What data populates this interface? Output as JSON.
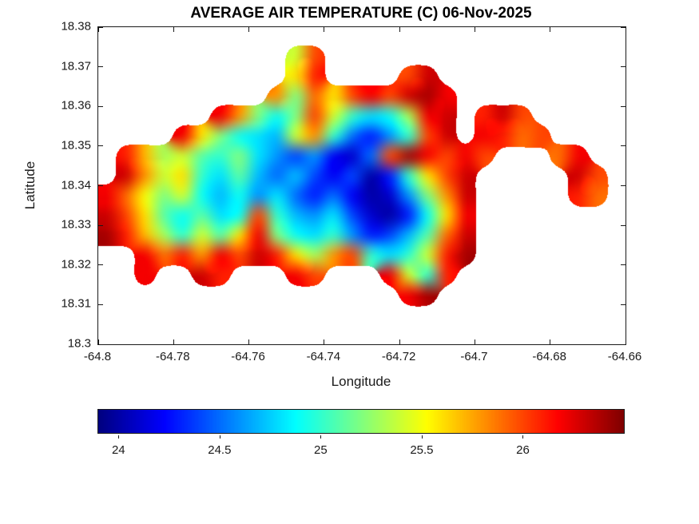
{
  "background": "#ffffff",
  "chart_data": {
    "type": "heatmap",
    "title": "AVERAGE AIR TEMPERATURE (C) 06-Nov-2025",
    "xlabel": "Longitude",
    "ylabel": "Latitude",
    "xlim": [
      -64.8,
      -64.66
    ],
    "ylim": [
      18.3,
      18.38
    ],
    "xticks": [
      -64.8,
      -64.78,
      -64.76,
      -64.74,
      -64.72,
      -64.7,
      -64.68,
      -64.66
    ],
    "xtick_labels": [
      "-64.8",
      "-64.78",
      "-64.76",
      "-64.74",
      "-64.72",
      "-64.7",
      "-64.68",
      "-64.66"
    ],
    "yticks": [
      18.38,
      18.37,
      18.36,
      18.35,
      18.34,
      18.33,
      18.32,
      18.31,
      18.3
    ],
    "ytick_labels": [
      "18.38",
      "18.37",
      "18.36",
      "18.35",
      "18.34",
      "18.33",
      "18.32",
      "18.31",
      "18.3"
    ],
    "colormap": "jet",
    "clim": [
      23.9,
      26.5
    ],
    "colorbar_orientation": "horizontal",
    "colorbar_ticks": [
      24,
      24.5,
      25,
      25.5,
      26
    ],
    "colorbar_tick_labels": [
      "24",
      "24.5",
      "25",
      "25.5",
      "26"
    ],
    "grid": {
      "lon_range": [
        -64.8,
        -64.66
      ],
      "lat_range": [
        18.3,
        18.38
      ],
      "ncols": 28,
      "nrows": 16,
      "values": [
        [
          null,
          null,
          null,
          null,
          null,
          null,
          null,
          null,
          null,
          null,
          null,
          null,
          null,
          null,
          null,
          null,
          null,
          null,
          null,
          null,
          null,
          null,
          null,
          null,
          null,
          null,
          null,
          null
        ],
        [
          null,
          null,
          null,
          null,
          null,
          null,
          null,
          null,
          null,
          null,
          25.4,
          26,
          null,
          null,
          null,
          null,
          null,
          null,
          null,
          null,
          null,
          null,
          null,
          null,
          null,
          null,
          null,
          null
        ],
        [
          null,
          null,
          null,
          null,
          null,
          null,
          null,
          null,
          null,
          null,
          25.6,
          26.1,
          null,
          null,
          null,
          null,
          26,
          26.3,
          null,
          null,
          null,
          null,
          null,
          null,
          null,
          null,
          null,
          null
        ],
        [
          null,
          null,
          null,
          null,
          null,
          null,
          null,
          null,
          null,
          25.8,
          25.2,
          25.9,
          25.6,
          26,
          26.2,
          26,
          26.3,
          26.4,
          26.2,
          null,
          null,
          null,
          null,
          null,
          null,
          null,
          null,
          null
        ],
        [
          null,
          null,
          null,
          null,
          null,
          null,
          26.2,
          25.8,
          25.2,
          24.9,
          25.2,
          26,
          25.4,
          25,
          24.8,
          24.9,
          25.3,
          26.2,
          26.3,
          null,
          26.1,
          26.3,
          26,
          null,
          null,
          null,
          null,
          null
        ],
        [
          null,
          null,
          null,
          null,
          26.2,
          25.6,
          25.2,
          24.9,
          24.8,
          24.7,
          25.4,
          25.8,
          25,
          24.5,
          24.3,
          24.6,
          25,
          26,
          26.3,
          null,
          26.2,
          26.1,
          25.9,
          26,
          null,
          null,
          null,
          null
        ],
        [
          null,
          26.1,
          25.7,
          25.3,
          25.4,
          25.1,
          25,
          25.2,
          24.8,
          24.6,
          24.4,
          24.6,
          24.2,
          24.1,
          24.5,
          26,
          26.4,
          26.2,
          26,
          26.2,
          26,
          null,
          null,
          null,
          25.9,
          26.2,
          null,
          null
        ],
        [
          null,
          26.3,
          25.8,
          25.4,
          25.6,
          25,
          24.8,
          25.1,
          24.7,
          24.5,
          24.7,
          24.4,
          24.2,
          24.4,
          24,
          24.3,
          25,
          25.6,
          26,
          26.3,
          null,
          null,
          null,
          null,
          null,
          26.3,
          26,
          null
        ],
        [
          26.2,
          25.9,
          25.5,
          25.2,
          25.4,
          24.9,
          24.7,
          24.9,
          24.6,
          24.8,
          24.5,
          24.3,
          24.5,
          24.2,
          24,
          24.1,
          24.6,
          25.2,
          25.8,
          26.3,
          null,
          null,
          null,
          null,
          null,
          26.1,
          25.9,
          null
        ],
        [
          26.3,
          26,
          25.6,
          25.1,
          24.9,
          25.1,
          24.8,
          24.9,
          26,
          25,
          24.7,
          24.6,
          24.8,
          24.4,
          24.1,
          24,
          24.3,
          24.9,
          25.6,
          26.2,
          null,
          null,
          null,
          null,
          null,
          null,
          null,
          null
        ],
        [
          26.4,
          26.1,
          25.7,
          25.3,
          25,
          25.4,
          25.1,
          25.6,
          26.2,
          25.2,
          24.9,
          24.8,
          25,
          24.6,
          24.3,
          24.4,
          24.7,
          25.1,
          25.9,
          26.3,
          null,
          null,
          null,
          null,
          null,
          null,
          null,
          null
        ],
        [
          null,
          null,
          26.2,
          25.9,
          26.1,
          25.8,
          26.2,
          26,
          26.3,
          26.1,
          25.6,
          25.3,
          25.8,
          26,
          25,
          24.8,
          25,
          25.4,
          26.1,
          26.4,
          null,
          null,
          null,
          null,
          null,
          null,
          null,
          null
        ],
        [
          null,
          null,
          26.2,
          null,
          null,
          26.3,
          26.1,
          null,
          null,
          null,
          26.2,
          26,
          null,
          null,
          null,
          26.2,
          25.4,
          25,
          26.1,
          null,
          null,
          null,
          null,
          null,
          null,
          null,
          null,
          null
        ],
        [
          null,
          null,
          null,
          null,
          null,
          null,
          null,
          null,
          null,
          null,
          null,
          null,
          null,
          null,
          null,
          null,
          26.2,
          26.4,
          null,
          null,
          null,
          null,
          null,
          null,
          null,
          null,
          null,
          null
        ],
        [
          null,
          null,
          null,
          null,
          null,
          null,
          null,
          null,
          null,
          null,
          null,
          null,
          null,
          null,
          null,
          null,
          null,
          null,
          null,
          null,
          null,
          null,
          null,
          null,
          null,
          null,
          null,
          null
        ],
        [
          null,
          null,
          null,
          null,
          null,
          null,
          null,
          null,
          null,
          null,
          null,
          null,
          null,
          null,
          null,
          null,
          null,
          null,
          null,
          null,
          null,
          null,
          null,
          null,
          null,
          null,
          null,
          null
        ]
      ]
    }
  }
}
